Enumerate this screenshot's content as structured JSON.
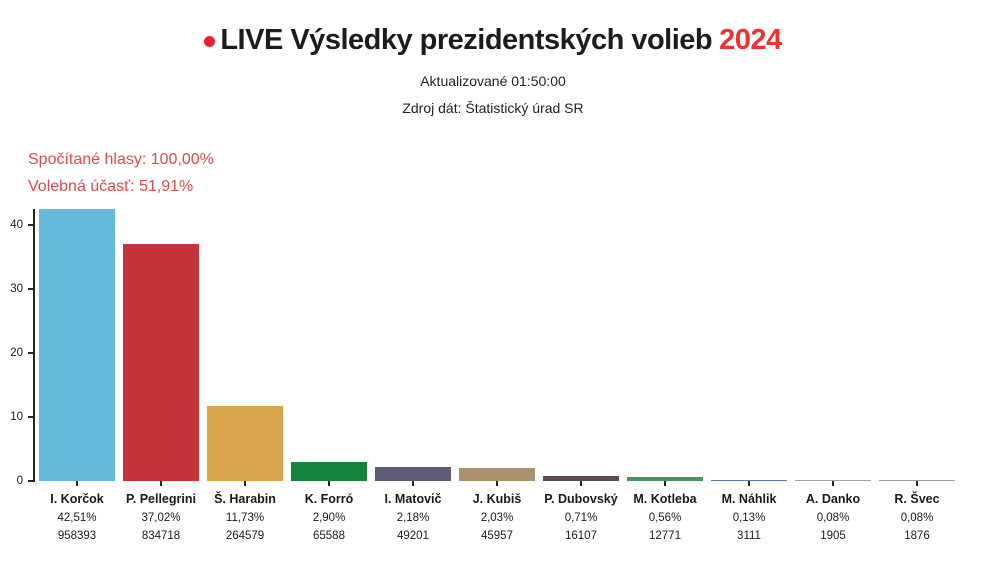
{
  "header": {
    "title_main": "LIVE Výsledky prezidentských volieb",
    "title_year": "2024",
    "updated": "Aktualizované 01:50:00",
    "source": "Zdroj dát: Štatistický úrad SR"
  },
  "stats": {
    "counted": "Spočítané hlasy: 100,00%",
    "turnout": "Volebná účasť: 51,91%"
  },
  "colors": {
    "accent_red": "#ee3135",
    "live_dot_red": "#e8232e",
    "stats_red": "#da4b4b",
    "axis": "#262626"
  },
  "chart_data": {
    "type": "bar",
    "title": "LIVE Výsledky prezidentských volieb 2024",
    "categories": [
      "I. Korčok",
      "P. Pellegrini",
      "Š. Harabin",
      "K. Forró",
      "I. Matovič",
      "J. Kubiš",
      "P. Dubovský",
      "M. Kotleba",
      "M. Náhlik",
      "A. Danko",
      "R. Švec"
    ],
    "values": [
      42.51,
      37.02,
      11.73,
      2.9,
      2.18,
      2.03,
      0.71,
      0.56,
      0.13,
      0.08,
      0.08
    ],
    "percent_labels": [
      "42,51%",
      "37,02%",
      "11,73%",
      "2,90%",
      "2,18%",
      "2,03%",
      "0,71%",
      "0,56%",
      "0,13%",
      "0,08%",
      "0,08%"
    ],
    "votes": [
      "958393",
      "834718",
      "264579",
      "65588",
      "49201",
      "45957",
      "16107",
      "12771",
      "3111",
      "1905",
      "1876"
    ],
    "bar_colors": [
      "#64badb",
      "#c2343a",
      "#d8a44c",
      "#14823c",
      "#5f5d75",
      "#a9916c",
      "#5d4a53",
      "#4e9160",
      "#5b7da0",
      "#a3a3a3",
      "#9b9b9b"
    ],
    "xlabel": "",
    "ylabel": "",
    "ylim": [
      0,
      42.51
    ],
    "yticks": [
      0,
      10,
      20,
      30,
      40
    ],
    "grid": false,
    "legend": false
  }
}
